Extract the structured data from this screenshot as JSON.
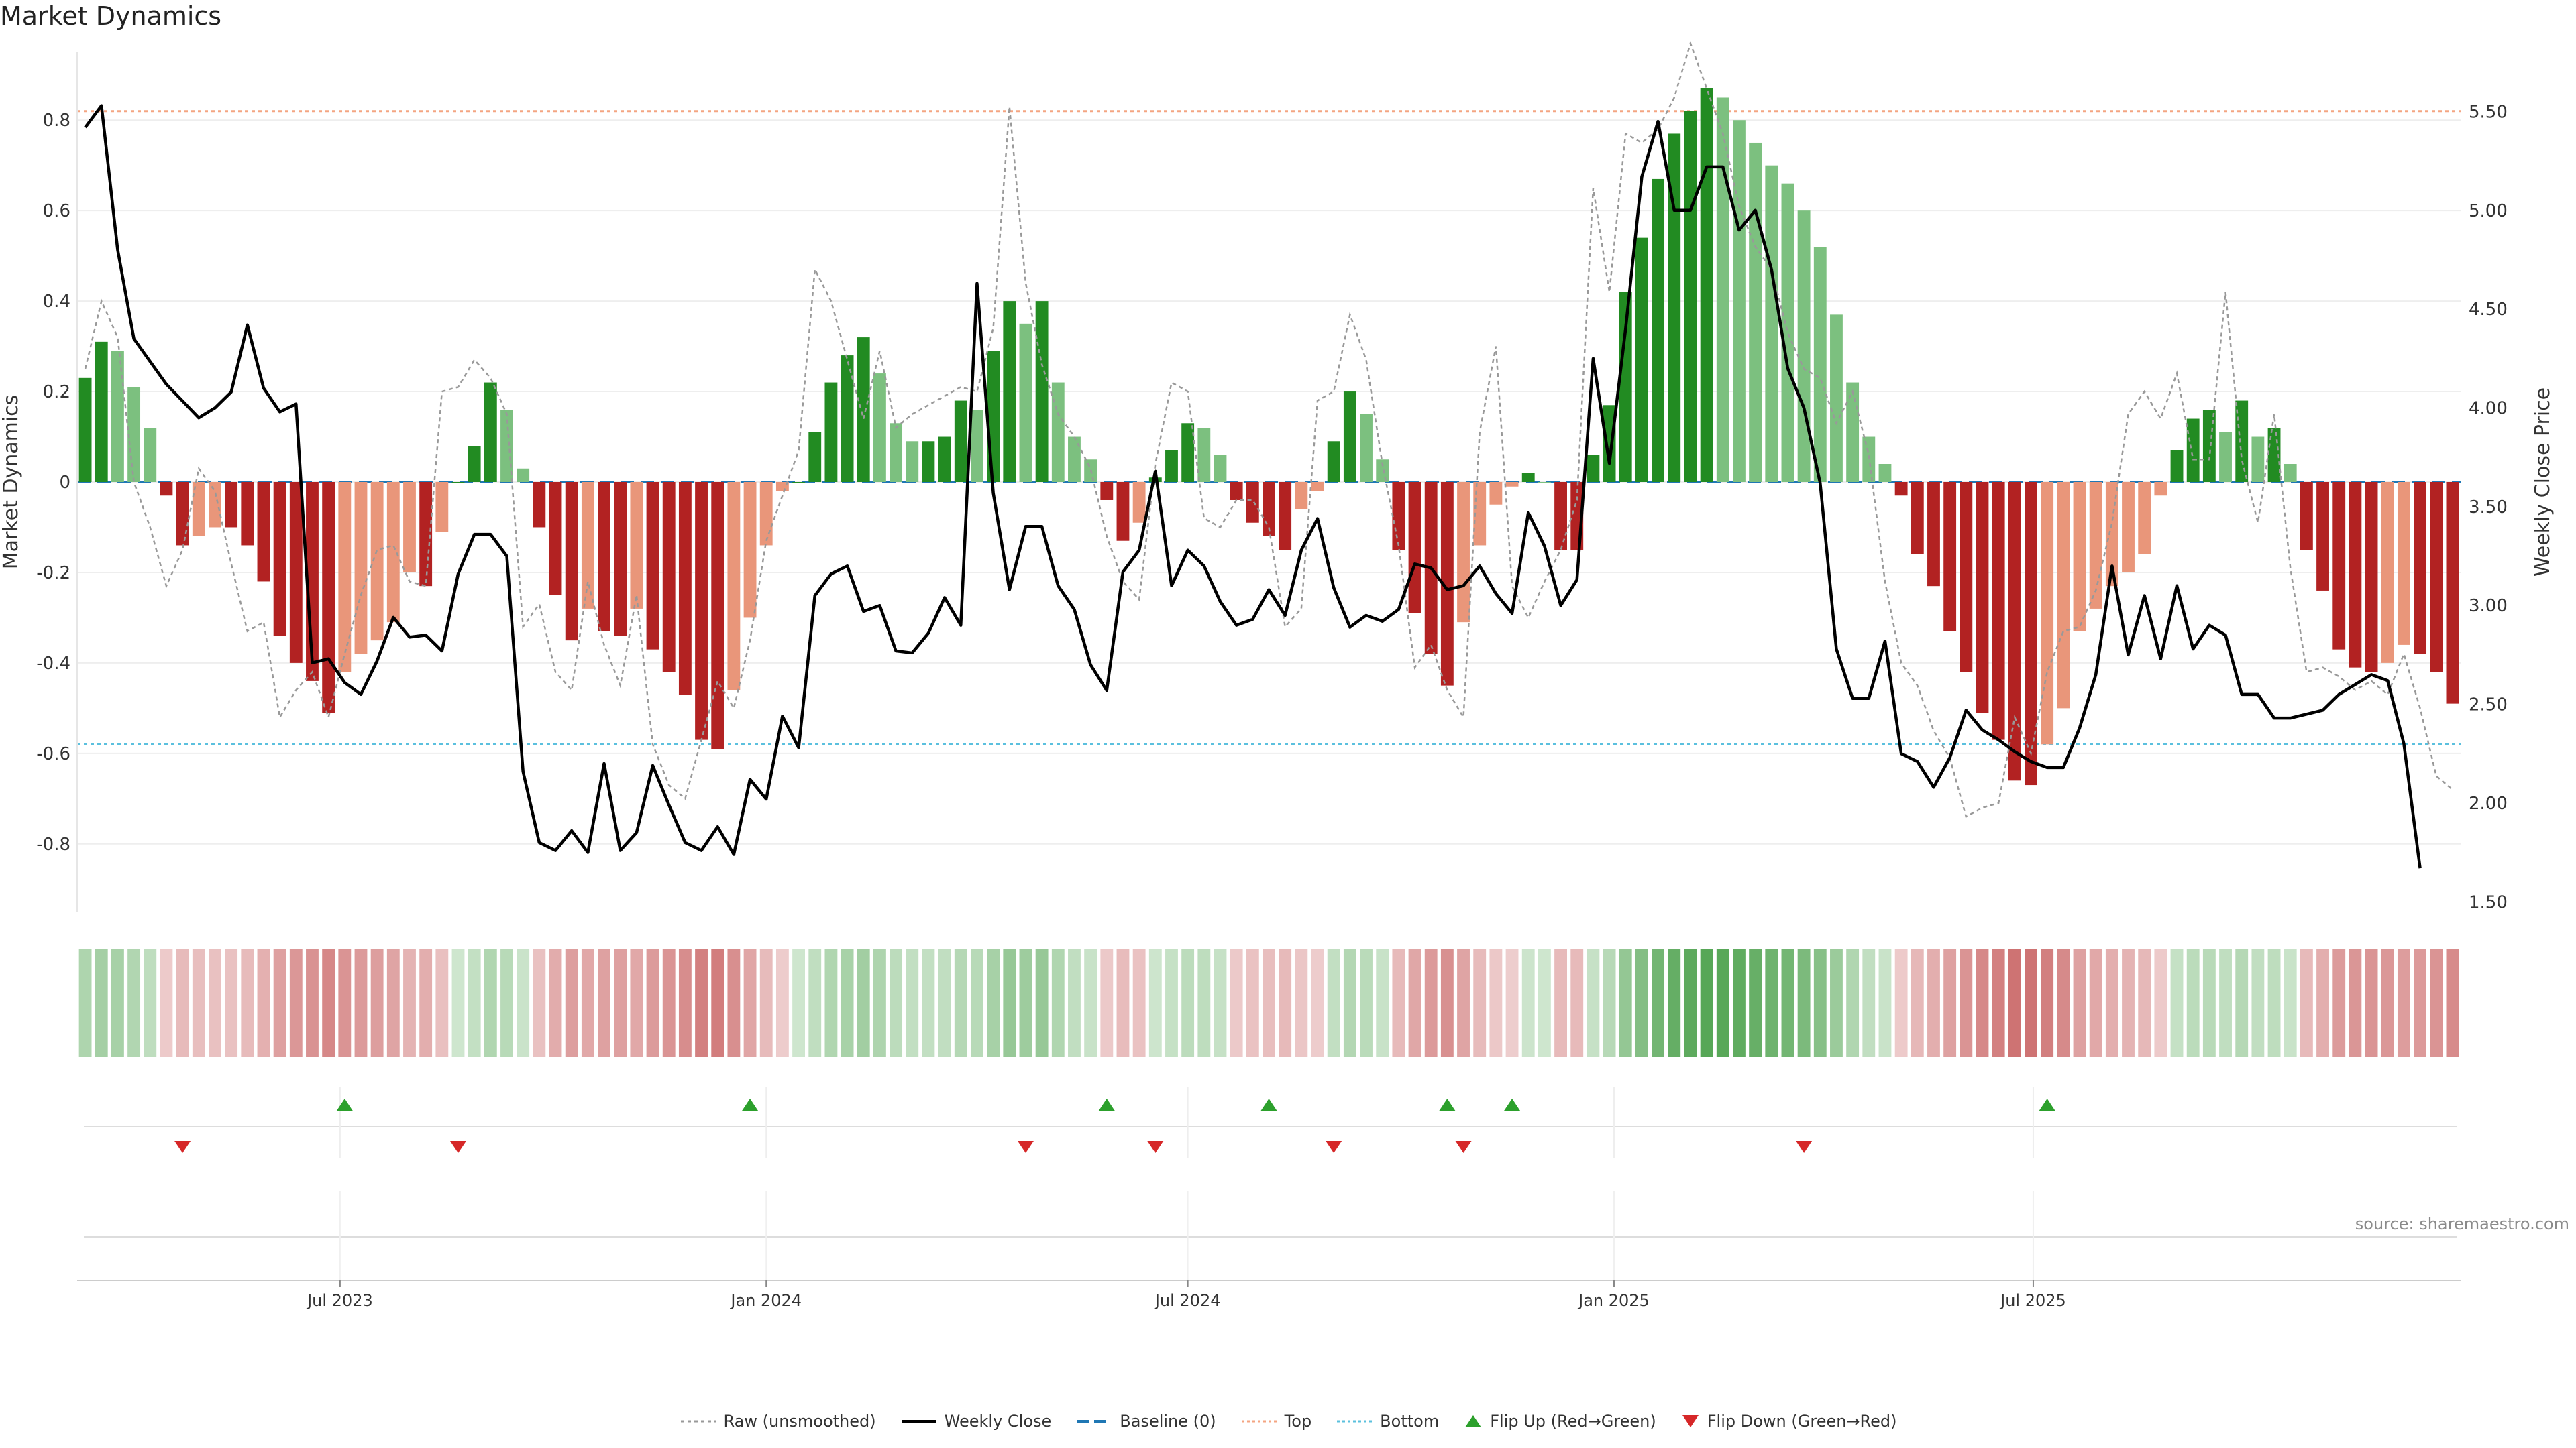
{
  "title": "Market Dynamics",
  "source": "source: sharemaestro.com",
  "colors": {
    "strong_green": "#228b22",
    "light_green": "#7cc07f",
    "strong_red": "#b22222",
    "light_red": "#e9967a",
    "raw": "#999999",
    "close": "#000000",
    "baseline": "#1f77b4",
    "top": "#f4a582",
    "bottom": "#5bc0de",
    "flip_up": "#2ca02c",
    "flip_down": "#d62728"
  },
  "chart_data": {
    "type": "bar",
    "title": "Market Dynamics",
    "x_start": "2023-03-13",
    "x_step_days": 7,
    "x_ticks": [
      "Jul 2023",
      "Jan 2024",
      "Jul 2024",
      "Jan 2025",
      "Jul 2025"
    ],
    "x_tick_dates": [
      "2023-07-01",
      "2024-01-01",
      "2024-07-01",
      "2025-01-01",
      "2025-07-01"
    ],
    "left_axis": {
      "label": "Market Dynamics",
      "ylim": [
        -0.95,
        0.95
      ],
      "ticks": [
        0.8,
        0.6,
        0.4,
        0.2,
        0,
        -0.2,
        -0.4,
        -0.6,
        -0.8
      ]
    },
    "right_axis": {
      "label": "Weekly Close Price",
      "ylim": [
        1.45,
        5.8
      ],
      "ticks": [
        "5.50",
        "5.00",
        "4.50",
        "4.00",
        "3.50",
        "3.00",
        "2.50",
        "2.00",
        "1.50"
      ]
    },
    "top_line": 0.82,
    "bottom_line": -0.58,
    "bars": [
      0.23,
      0.31,
      0.29,
      0.21,
      0.12,
      -0.03,
      -0.14,
      -0.12,
      -0.1,
      -0.1,
      -0.14,
      -0.22,
      -0.34,
      -0.4,
      -0.44,
      -0.51,
      -0.42,
      -0.38,
      -0.35,
      -0.31,
      -0.2,
      -0.23,
      -0.11,
      0,
      0.08,
      0.22,
      0.16,
      0.03,
      -0.1,
      -0.25,
      -0.35,
      -0.28,
      -0.33,
      -0.34,
      -0.28,
      -0.37,
      -0.42,
      -0.47,
      -0.57,
      -0.59,
      -0.46,
      -0.3,
      -0.14,
      -0.02,
      0,
      0.11,
      0.22,
      0.28,
      0.32,
      0.24,
      0.13,
      0.09,
      0.09,
      0.1,
      0.18,
      0.16,
      0.29,
      0.4,
      0.35,
      0.4,
      0.22,
      0.1,
      0.05,
      -0.04,
      -0.13,
      -0.09,
      0.01,
      0.07,
      0.13,
      0.12,
      0.06,
      -0.04,
      -0.09,
      -0.12,
      -0.15,
      -0.06,
      -0.02,
      0.09,
      0.2,
      0.15,
      0.05,
      -0.15,
      -0.29,
      -0.38,
      -0.45,
      -0.31,
      -0.14,
      -0.05,
      -0.01,
      0.02,
      0,
      -0.15,
      -0.15,
      0.06,
      0.17,
      0.42,
      0.54,
      0.67,
      0.77,
      0.82,
      0.87,
      0.85,
      0.8,
      0.75,
      0.7,
      0.66,
      0.6,
      0.52,
      0.37,
      0.22,
      0.1,
      0.04,
      -0.03,
      -0.16,
      -0.23,
      -0.33,
      -0.42,
      -0.51,
      -0.57,
      -0.66,
      -0.67,
      -0.58,
      -0.5,
      -0.33,
      -0.28,
      -0.23,
      -0.2,
      -0.16,
      -0.03,
      0.07,
      0.14,
      0.16,
      0.11,
      0.18,
      0.1,
      0.12,
      0.04,
      -0.15,
      -0.24,
      -0.37,
      -0.41,
      -0.42,
      -0.4,
      -0.36,
      -0.38,
      -0.42,
      -0.49
    ],
    "raw": [
      0.25,
      0.4,
      0.32,
      0.0,
      -0.1,
      -0.23,
      -0.15,
      0.03,
      -0.02,
      -0.18,
      -0.33,
      -0.31,
      -0.52,
      -0.46,
      -0.42,
      -0.52,
      -0.38,
      -0.25,
      -0.15,
      -0.14,
      -0.22,
      -0.23,
      0.2,
      0.21,
      0.27,
      0.23,
      0.15,
      -0.32,
      -0.27,
      -0.42,
      -0.46,
      -0.22,
      -0.36,
      -0.45,
      -0.25,
      -0.58,
      -0.67,
      -0.7,
      -0.57,
      -0.44,
      -0.5,
      -0.35,
      -0.13,
      -0.03,
      0.07,
      0.47,
      0.4,
      0.27,
      0.14,
      0.29,
      0.12,
      0.15,
      0.17,
      0.19,
      0.21,
      0.2,
      0.34,
      0.83,
      0.44,
      0.26,
      0.15,
      0.1,
      0.03,
      -0.12,
      -0.22,
      -0.26,
      0.04,
      0.22,
      0.2,
      -0.08,
      -0.1,
      -0.04,
      -0.04,
      -0.1,
      -0.32,
      -0.28,
      0.18,
      0.2,
      0.37,
      0.27,
      0.04,
      -0.14,
      -0.41,
      -0.36,
      -0.46,
      -0.52,
      0.11,
      0.3,
      -0.23,
      -0.3,
      -0.22,
      -0.15,
      -0.04,
      0.65,
      0.42,
      0.77,
      0.75,
      0.78,
      0.85,
      0.97,
      0.87,
      0.77,
      0.61,
      0.52,
      0.47,
      0.33,
      0.25,
      0.23,
      0.13,
      0.2,
      0.06,
      -0.22,
      -0.4,
      -0.45,
      -0.55,
      -0.61,
      -0.74,
      -0.72,
      -0.71,
      -0.52,
      -0.6,
      -0.42,
      -0.33,
      -0.32,
      -0.24,
      -0.09,
      0.15,
      0.2,
      0.14,
      0.24,
      0.05,
      0.05,
      0.42,
      0.05,
      -0.09,
      0.15,
      -0.19,
      -0.42,
      -0.41,
      -0.43,
      -0.46,
      -0.44,
      -0.47,
      -0.38,
      -0.5,
      -0.65,
      -0.68
    ],
    "close": [
      5.42,
      5.53,
      4.8,
      4.35,
      4.12,
      3.95,
      4.0,
      4.08,
      4.42,
      4.1,
      3.98,
      4.02,
      2.71,
      2.73,
      2.61,
      2.55,
      2.72,
      2.94,
      2.84,
      2.85,
      2.77,
      3.16,
      3.36,
      3.36,
      3.25,
      2.16,
      1.8,
      1.76,
      1.86,
      1.75,
      2.2,
      1.76,
      1.85,
      2.19,
      1.99,
      1.8,
      1.76,
      1.88,
      1.74,
      2.12,
      2.02,
      2.44,
      2.28,
      3.05,
      3.16,
      3.2,
      2.97,
      3.0,
      2.77,
      2.76,
      2.86,
      3.04,
      2.9,
      4.63,
      3.57,
      3.08,
      3.4,
      3.4,
      3.1,
      2.98,
      2.7,
      2.57,
      3.17,
      3.28,
      3.68,
      3.1,
      3.28,
      3.2,
      3.02,
      2.9,
      2.93,
      3.08,
      2.95,
      3.28,
      3.44,
      3.09,
      2.89,
      2.95,
      2.92,
      2.98,
      3.21,
      3.19,
      3.08,
      3.1,
      3.2,
      3.06,
      2.96,
      3.47,
      3.3,
      3.0,
      3.13,
      4.25,
      3.72,
      4.4,
      5.17,
      5.45,
      5.0,
      5.0,
      5.22,
      5.22,
      4.9,
      5.0,
      4.7,
      4.2,
      4.0,
      3.62,
      2.78,
      2.53,
      2.53,
      2.82,
      2.25,
      2.21,
      2.08,
      2.23,
      2.47,
      2.37,
      2.32,
      2.26,
      2.21,
      2.18,
      2.18,
      2.38,
      2.65,
      3.2,
      2.75,
      3.05,
      2.73,
      3.1,
      2.78,
      2.9,
      2.85,
      2.55,
      2.55,
      2.43,
      2.43,
      2.45,
      2.47,
      2.55,
      2.6,
      2.65,
      2.62,
      2.3,
      1.67
    ],
    "close_bar_index": [
      0,
      1,
      2,
      3,
      5,
      7,
      8,
      9,
      10,
      11,
      12,
      13,
      14,
      15,
      16,
      17,
      18,
      19,
      20,
      21,
      22,
      23,
      24,
      25,
      26,
      27,
      28,
      29,
      30,
      31,
      32,
      33,
      34,
      35,
      36,
      37,
      38,
      39,
      40,
      41,
      42,
      43,
      44,
      45,
      46,
      47,
      48,
      49,
      50,
      51,
      52,
      53,
      54,
      55,
      56,
      57,
      58,
      59,
      60,
      61,
      62,
      63,
      64,
      65,
      66,
      67,
      68,
      69,
      70,
      71,
      72,
      73,
      74,
      75,
      76,
      77,
      78,
      79,
      80,
      81,
      82,
      83,
      84,
      85,
      86,
      87,
      88,
      89,
      90,
      91,
      92,
      93,
      94,
      95,
      96,
      97,
      98,
      99,
      100,
      101,
      102,
      103,
      104,
      105,
      106,
      107,
      108,
      109,
      110,
      111,
      112,
      113,
      114,
      115,
      116,
      117,
      118,
      119,
      120,
      121,
      122,
      123,
      124,
      125,
      126,
      127,
      128,
      129,
      130,
      131,
      132,
      133,
      134,
      135,
      136,
      137,
      138,
      139,
      140,
      141,
      142,
      143,
      144
    ],
    "flip_up": [
      "2023-07-03",
      "2023-12-25",
      "2024-05-27",
      "2024-08-05",
      "2024-10-21",
      "2024-11-18",
      "2025-07-07"
    ],
    "flip_down": [
      "2023-04-24",
      "2023-08-21",
      "2024-04-22",
      "2024-06-17",
      "2024-09-02",
      "2024-10-28",
      "2025-03-24"
    ],
    "legend": [
      "Raw (unsmoothed)",
      "Weekly Close",
      "Baseline (0)",
      "Top",
      "Bottom",
      "Flip Up (Red→Green)",
      "Flip Down (Green→Red)"
    ]
  }
}
